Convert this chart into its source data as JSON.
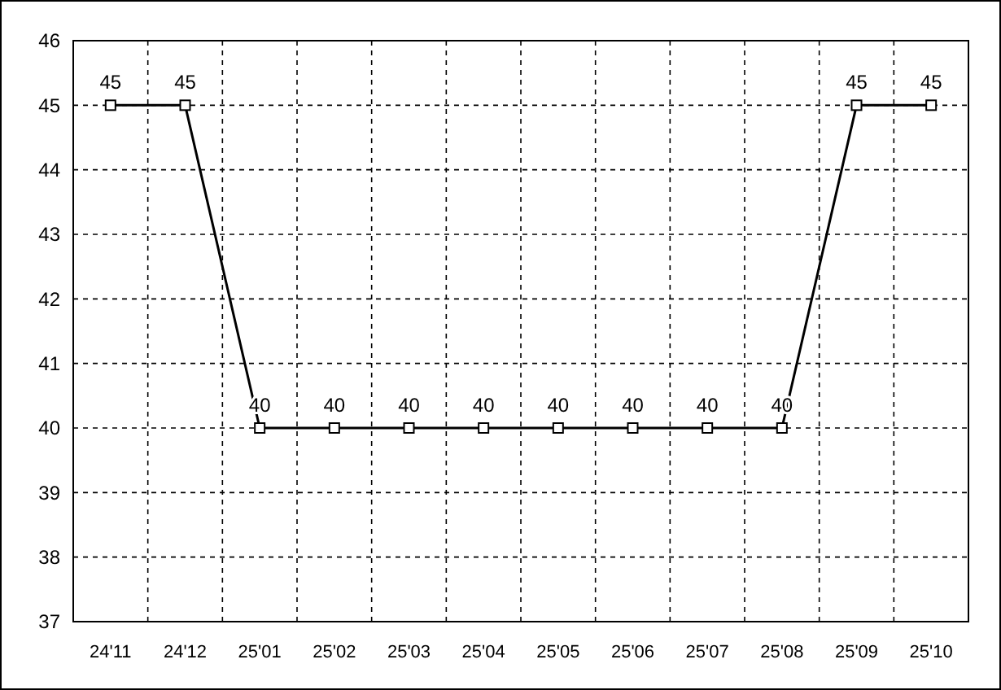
{
  "chart_data": {
    "type": "line",
    "categories": [
      "24'11",
      "24'12",
      "25'01",
      "25'02",
      "25'03",
      "25'04",
      "25'05",
      "25'06",
      "25'07",
      "25'08",
      "25'09",
      "25'10"
    ],
    "series": [
      {
        "color": "#000000",
        "values": [
          45,
          45,
          40,
          40,
          40,
          40,
          40,
          40,
          40,
          40,
          45,
          45
        ]
      }
    ],
    "ylim": [
      37,
      46
    ],
    "yticks": [
      37,
      38,
      39,
      40,
      41,
      42,
      43,
      44,
      45,
      46
    ],
    "grid": true,
    "marker": "square",
    "line_style": "solid",
    "data_labels": true
  }
}
